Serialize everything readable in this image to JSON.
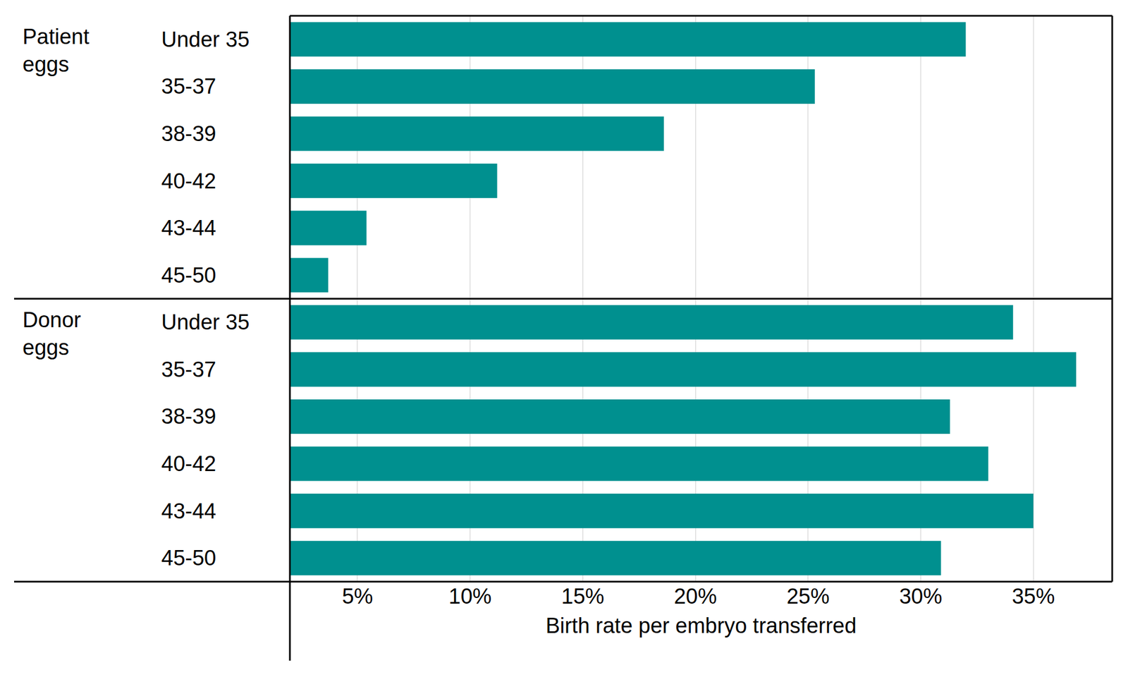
{
  "chart_data": {
    "type": "bar",
    "orientation": "horizontal",
    "color": "#00908f",
    "grid": true,
    "x_label": "Birth rate per embryo transferred",
    "groups": [
      {
        "label": "Patient eggs",
        "categories": [
          "Under 35",
          "35-37",
          "38-39",
          "40-42",
          "43-44",
          "45-50"
        ],
        "values": [
          32.0,
          25.3,
          18.6,
          11.2,
          5.4,
          3.7
        ]
      },
      {
        "label": "Donor eggs",
        "categories": [
          "Under 35",
          "35-37",
          "38-39",
          "40-42",
          "43-44",
          "45-50"
        ],
        "values": [
          34.1,
          36.9,
          31.3,
          33.0,
          35.0,
          30.9
        ]
      }
    ],
    "xlim": [
      2,
      38.5
    ],
    "xticks": [
      {
        "value": 5,
        "label": "5%"
      },
      {
        "value": 10,
        "label": "10%"
      },
      {
        "value": 15,
        "label": "15%"
      },
      {
        "value": 20,
        "label": "20%"
      },
      {
        "value": 25,
        "label": "25%"
      },
      {
        "value": 30,
        "label": "30%"
      },
      {
        "value": 35,
        "label": "35%"
      }
    ]
  }
}
